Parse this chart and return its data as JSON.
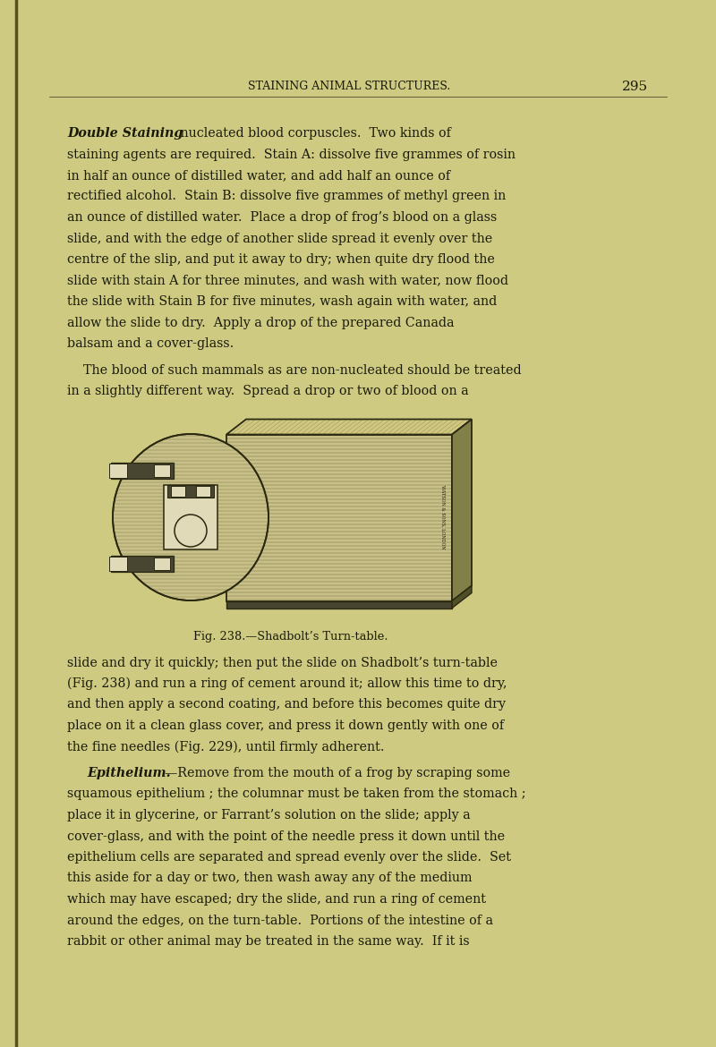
{
  "background_color": "#ceca82",
  "text_color": "#1a1a0a",
  "header_text": "STAINING ANIMAL STRUCTURES.",
  "page_number": "295",
  "fig_caption": "Fig. 238.—Shadbolt’s Turn-table.",
  "para1_italic": "Double Staining",
  "spine_color": "#5a5020",
  "fig_dark": "#2a2810",
  "fig_mid": "#6a6430",
  "fig_light": "#c8c088",
  "fig_lighter": "#d8d0a0",
  "fig_shadow": "#484530",
  "fig_white": "#e0dab8"
}
